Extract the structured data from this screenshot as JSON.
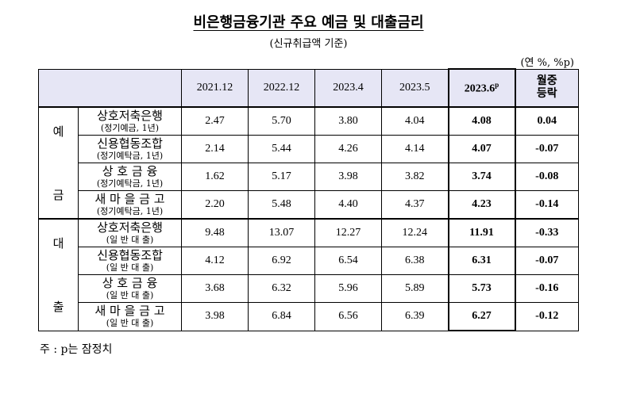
{
  "title": "비은행금융기관 주요 예금 및 대출금리",
  "subtitle": "(신규취급액 기준)",
  "unit": "(연 %, %p)",
  "headers": [
    "2021.12",
    "2022.12",
    "2023.4",
    "2023.5",
    "2023.6",
    "p",
    "월중",
    "등락"
  ],
  "groups": {
    "deposit": [
      "예",
      "금"
    ],
    "loan": [
      "대",
      "출"
    ]
  },
  "rows": [
    {
      "name": "상호저축은행",
      "sub": "(정기예금, 1년)",
      "v1": "2.47",
      "v2": "5.70",
      "v3": "3.80",
      "v4": "4.04",
      "v5": "4.08",
      "chg": "0.04"
    },
    {
      "name": "신용협동조합",
      "sub": "(정기예탁금, 1년)",
      "v1": "2.14",
      "v2": "5.44",
      "v3": "4.26",
      "v4": "4.14",
      "v5": "4.07",
      "chg": "-0.07"
    },
    {
      "name": "상 호 금 융",
      "sub": "(정기예탁금, 1년)",
      "v1": "1.62",
      "v2": "5.17",
      "v3": "3.98",
      "v4": "3.82",
      "v5": "3.74",
      "chg": "-0.08"
    },
    {
      "name": "새 마 을 금 고",
      "sub": "(정기예탁금, 1년)",
      "v1": "2.20",
      "v2": "5.48",
      "v3": "4.40",
      "v4": "4.37",
      "v5": "4.23",
      "chg": "-0.14"
    },
    {
      "name": "상호저축은행",
      "sub": "(일 반 대 출)",
      "v1": "9.48",
      "v2": "13.07",
      "v3": "12.27",
      "v4": "12.24",
      "v5": "11.91",
      "chg": "-0.33"
    },
    {
      "name": "신용협동조합",
      "sub": "(일 반 대 출)",
      "v1": "4.12",
      "v2": "6.92",
      "v3": "6.54",
      "v4": "6.38",
      "v5": "6.31",
      "chg": "-0.07"
    },
    {
      "name": "상 호 금 융",
      "sub": "(일 반 대 출)",
      "v1": "3.68",
      "v2": "6.32",
      "v3": "5.96",
      "v4": "5.89",
      "v5": "5.73",
      "chg": "-0.16"
    },
    {
      "name": "새 마 을 금 고",
      "sub": "(일 반 대 출)",
      "v1": "3.98",
      "v2": "6.84",
      "v3": "6.56",
      "v4": "6.39",
      "v5": "6.27",
      "chg": "-0.12"
    }
  ],
  "note": "주 : p는 잠정치"
}
